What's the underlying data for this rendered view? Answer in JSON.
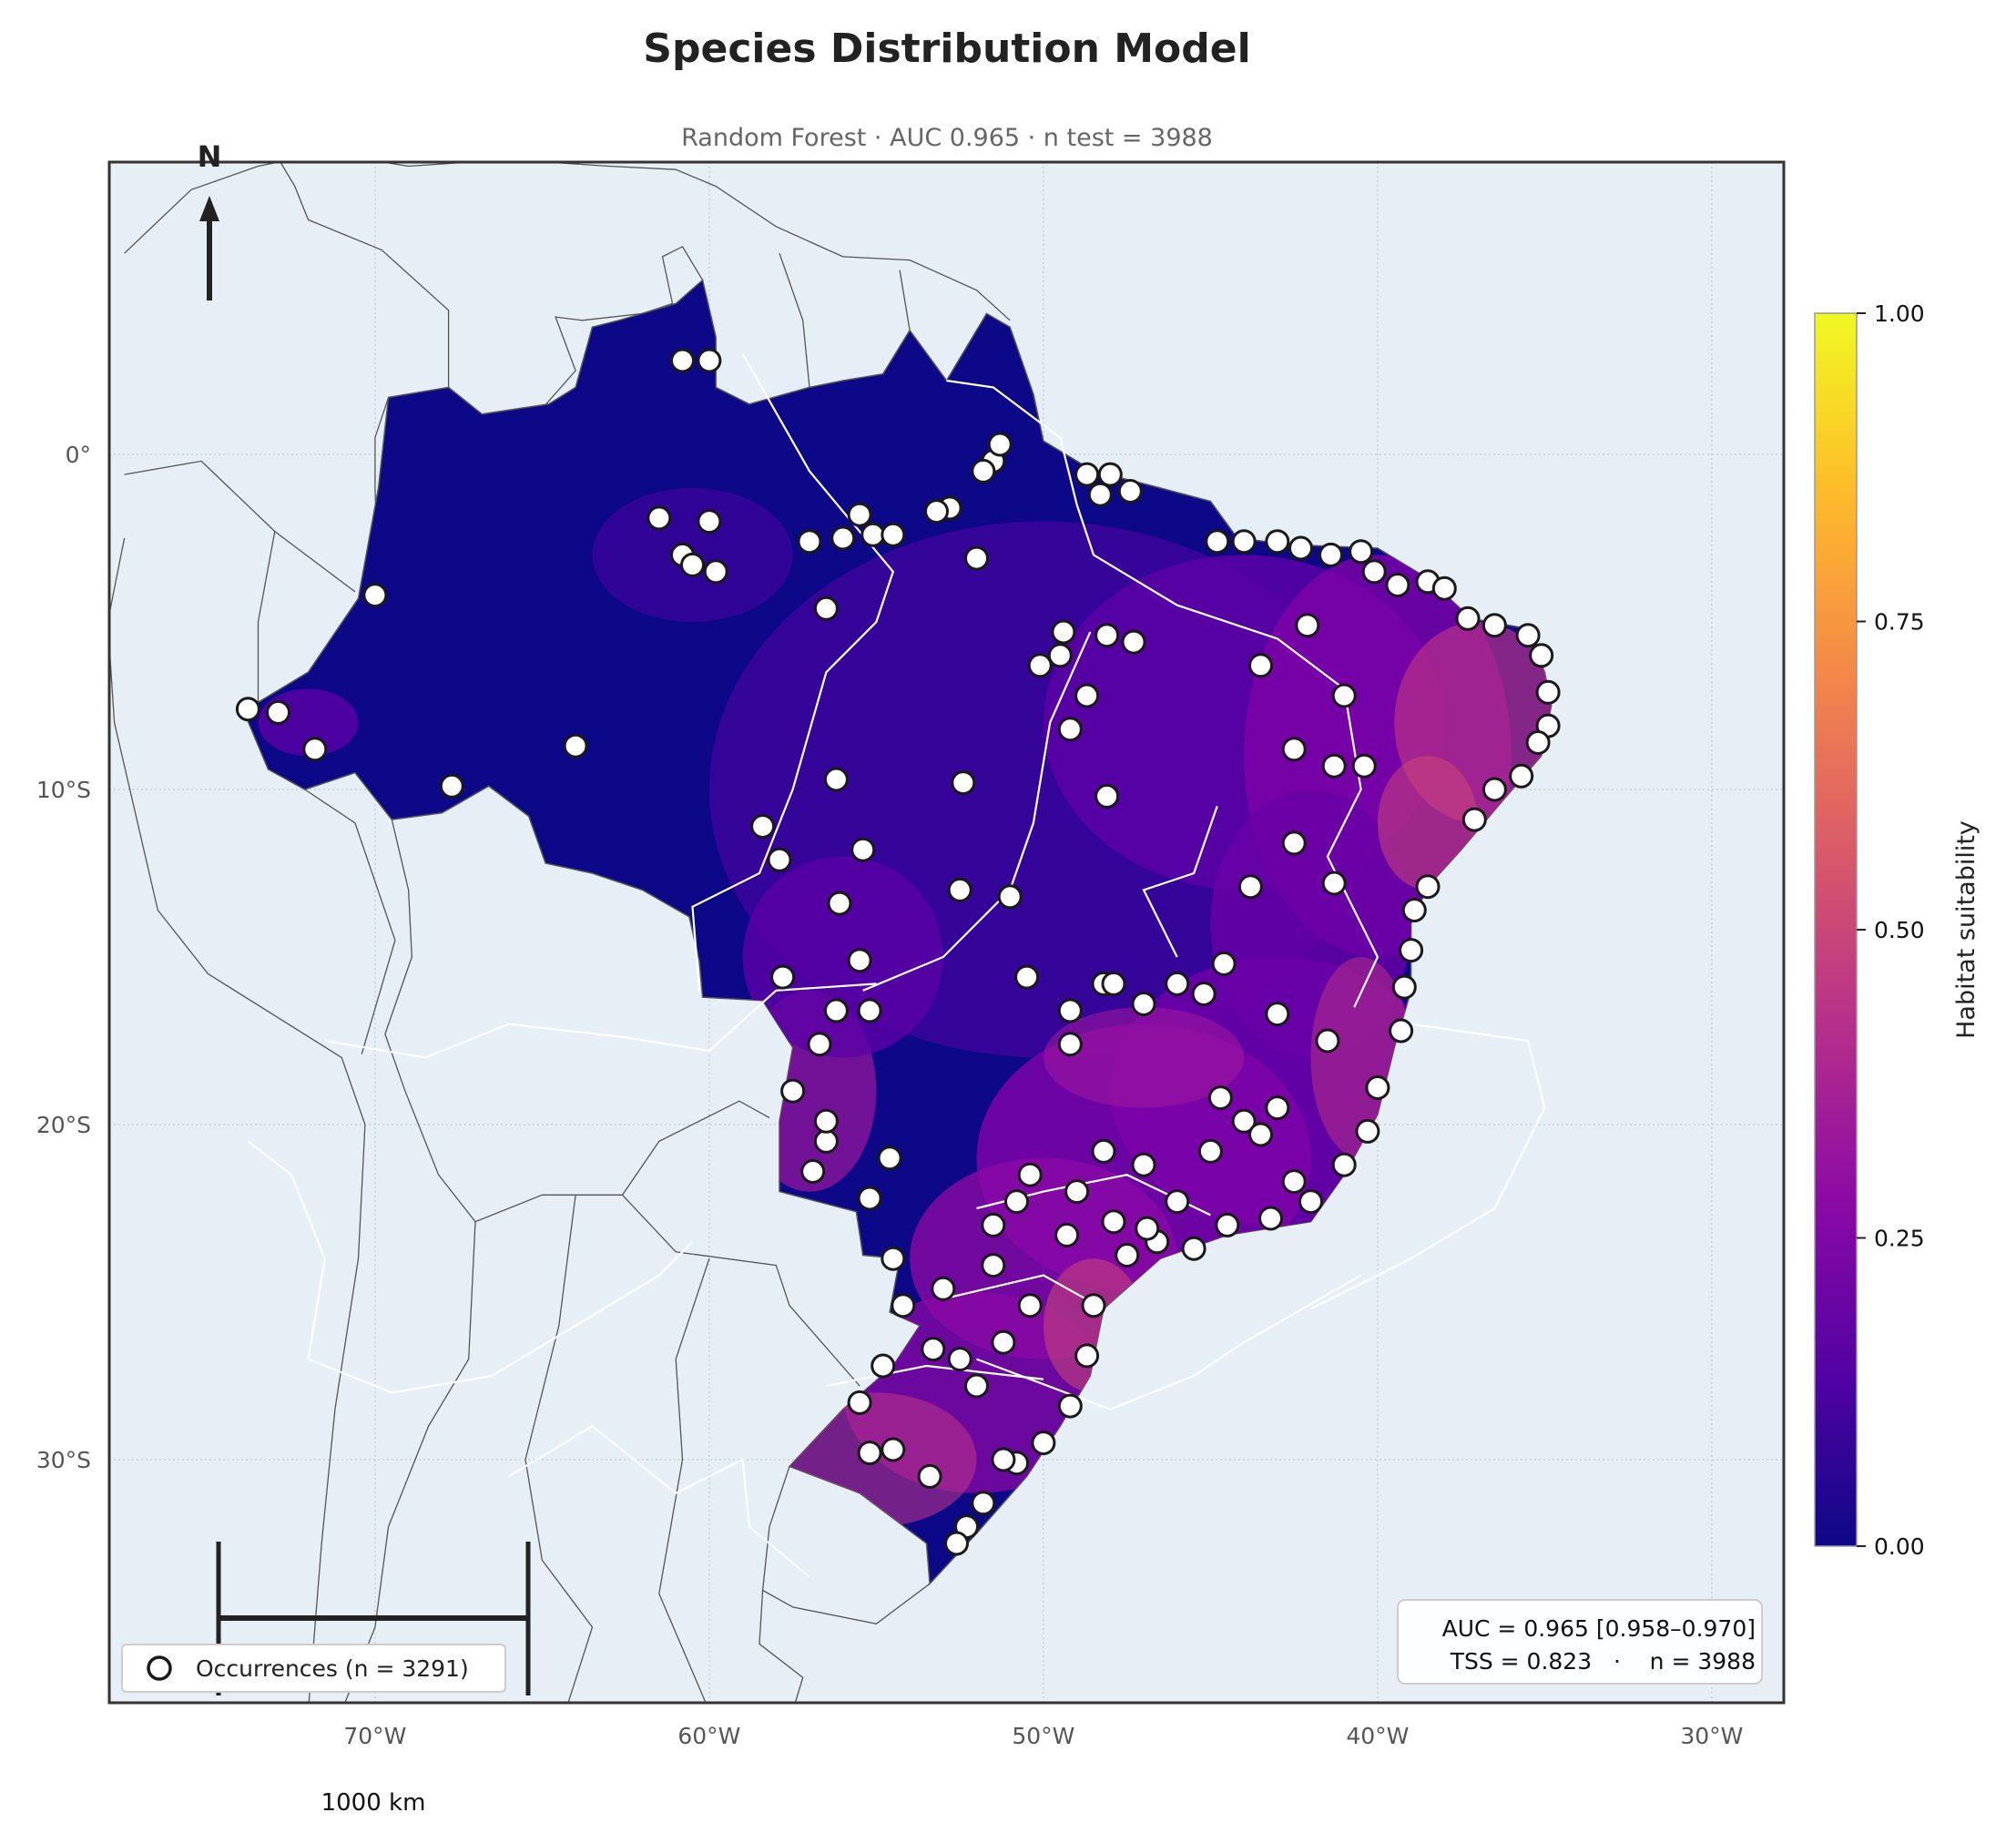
{
  "title": "Species Distribution Model",
  "subtitle": "Random Forest · AUC 0.965 · n test = 3988",
  "north_arrow": {
    "label": "N"
  },
  "axes": {
    "x_ticks": [
      "70°W",
      "60°W",
      "50°W",
      "40°W",
      "30°W"
    ],
    "y_ticks": [
      "0°",
      "10°S",
      "20°S",
      "30°S"
    ],
    "lon_range": [
      -77.5,
      -27.5
    ],
    "lat_range": [
      -37.5,
      8.7
    ],
    "grid": true
  },
  "colorbar": {
    "label": "Habitat suitability",
    "ticks": [
      "0.00",
      "0.25",
      "0.50",
      "0.75",
      "1.00"
    ],
    "colormap": "plasma",
    "colors": [
      "#0d0887",
      "#5302a3",
      "#8b0aa5",
      "#b83289",
      "#db5c68",
      "#f48849",
      "#febd2a",
      "#f0f921"
    ]
  },
  "legend": {
    "label": "Occurrences (n = 3291)",
    "location": "lower-left"
  },
  "stats_box": {
    "line1": "AUC = 0.965 [0.958–0.970]",
    "line2": "TSS = 0.823   ·    n = 3988",
    "location": "lower-right"
  },
  "scale_bar": {
    "label": "1000 km"
  },
  "colors": {
    "ocean": "#e6eef6",
    "land_fill": "#0d0887",
    "occurrence_fill": "#ffffff",
    "occurrence_edge": "#1a1a1a"
  },
  "chart_data": {
    "type": "scatter",
    "description_units": "longitude/latitude degrees",
    "occurrence_count": 3291,
    "metrics": {
      "model": "Random Forest",
      "AUC": 0.965,
      "AUC_CI": [
        0.958,
        0.97
      ],
      "TSS": 0.823,
      "n_test": 3988
    },
    "occurrences_sample": [
      [
        -73.8,
        -7.6
      ],
      [
        -72.9,
        -7.7
      ],
      [
        -71.8,
        -8.8
      ],
      [
        -67.7,
        -9.9
      ],
      [
        -64.0,
        -8.7
      ],
      [
        -70.0,
        -4.2
      ],
      [
        -60.8,
        2.8
      ],
      [
        -60.0,
        2.8
      ],
      [
        -61.5,
        -1.9
      ],
      [
        -60.8,
        -3.0
      ],
      [
        -60.0,
        -2.0
      ],
      [
        -59.8,
        -3.5
      ],
      [
        -60.5,
        -3.3
      ],
      [
        -57.0,
        -2.6
      ],
      [
        -56.0,
        -2.5
      ],
      [
        -55.1,
        -2.4
      ],
      [
        -54.5,
        -2.4
      ],
      [
        -56.5,
        -4.6
      ],
      [
        -55.5,
        -1.8
      ],
      [
        -51.5,
        -0.2
      ],
      [
        -51.3,
        0.3
      ],
      [
        -51.8,
        -0.5
      ],
      [
        -52.0,
        -3.1
      ],
      [
        -52.8,
        -1.6
      ],
      [
        -53.2,
        -1.7
      ],
      [
        -48.7,
        -0.6
      ],
      [
        -48.0,
        -0.6
      ],
      [
        -48.3,
        -1.2
      ],
      [
        -47.4,
        -1.1
      ],
      [
        -44.8,
        -2.6
      ],
      [
        -44.0,
        -2.6
      ],
      [
        -43.0,
        -2.6
      ],
      [
        -42.3,
        -2.8
      ],
      [
        -41.4,
        -3.0
      ],
      [
        -40.5,
        -2.9
      ],
      [
        -40.1,
        -3.5
      ],
      [
        -39.4,
        -3.9
      ],
      [
        -38.5,
        -3.8
      ],
      [
        -38.0,
        -4.0
      ],
      [
        -37.3,
        -4.9
      ],
      [
        -36.5,
        -5.1
      ],
      [
        -35.5,
        -5.4
      ],
      [
        -35.1,
        -6.0
      ],
      [
        -34.9,
        -7.1
      ],
      [
        -34.9,
        -8.1
      ],
      [
        -35.2,
        -8.6
      ],
      [
        -35.7,
        -9.6
      ],
      [
        -36.5,
        -10.0
      ],
      [
        -37.1,
        -10.9
      ],
      [
        -38.5,
        -12.9
      ],
      [
        -38.9,
        -13.6
      ],
      [
        -39.0,
        -14.8
      ],
      [
        -39.2,
        -15.9
      ],
      [
        -39.3,
        -17.2
      ],
      [
        -40.0,
        -18.9
      ],
      [
        -40.3,
        -20.2
      ],
      [
        -41.0,
        -21.2
      ],
      [
        -42.0,
        -22.3
      ],
      [
        -43.2,
        -22.8
      ],
      [
        -44.5,
        -23.0
      ],
      [
        -45.5,
        -23.7
      ],
      [
        -46.6,
        -23.5
      ],
      [
        -47.5,
        -23.9
      ],
      [
        -48.5,
        -25.4
      ],
      [
        -48.7,
        -26.9
      ],
      [
        -49.2,
        -28.4
      ],
      [
        -50.0,
        -29.5
      ],
      [
        -50.8,
        -30.1
      ],
      [
        -51.2,
        -30.0
      ],
      [
        -51.8,
        -31.3
      ],
      [
        -52.3,
        -32.0
      ],
      [
        -52.6,
        -32.5
      ],
      [
        -53.4,
        -30.5
      ],
      [
        -54.5,
        -29.7
      ],
      [
        -55.2,
        -29.8
      ],
      [
        -55.5,
        -28.3
      ],
      [
        -54.8,
        -27.2
      ],
      [
        -53.3,
        -26.7
      ],
      [
        -52.5,
        -27.0
      ],
      [
        -52.0,
        -27.8
      ],
      [
        -51.2,
        -26.5
      ],
      [
        -50.4,
        -25.4
      ],
      [
        -51.5,
        -24.2
      ],
      [
        -53.0,
        -24.9
      ],
      [
        -54.2,
        -25.4
      ],
      [
        -54.5,
        -24.0
      ],
      [
        -55.2,
        -22.2
      ],
      [
        -54.6,
        -21.0
      ],
      [
        -56.5,
        -20.5
      ],
      [
        -57.5,
        -19.0
      ],
      [
        -56.5,
        -19.9
      ],
      [
        -56.9,
        -21.4
      ],
      [
        -56.7,
        -17.6
      ],
      [
        -56.2,
        -16.6
      ],
      [
        -55.5,
        -15.1
      ],
      [
        -56.1,
        -13.4
      ],
      [
        -55.2,
        -16.6
      ],
      [
        -57.8,
        -15.6
      ],
      [
        -58.4,
        -11.1
      ],
      [
        -57.9,
        -12.1
      ],
      [
        -56.2,
        -9.7
      ],
      [
        -55.4,
        -11.8
      ],
      [
        -52.4,
        -9.8
      ],
      [
        -52.5,
        -13.0
      ],
      [
        -51.0,
        -13.2
      ],
      [
        -50.5,
        -15.6
      ],
      [
        -49.2,
        -16.6
      ],
      [
        -49.2,
        -17.6
      ],
      [
        -48.2,
        -15.8
      ],
      [
        -47.9,
        -15.8
      ],
      [
        -47.0,
        -16.4
      ],
      [
        -46.0,
        -15.8
      ],
      [
        -45.2,
        -16.1
      ],
      [
        -44.6,
        -15.2
      ],
      [
        -43.8,
        -12.9
      ],
      [
        -43.0,
        -16.7
      ],
      [
        -41.5,
        -17.5
      ],
      [
        -42.5,
        -11.6
      ],
      [
        -41.3,
        -12.8
      ],
      [
        -41.3,
        -9.3
      ],
      [
        -40.4,
        -9.3
      ],
      [
        -42.5,
        -8.8
      ],
      [
        -43.5,
        -6.3
      ],
      [
        -42.1,
        -5.1
      ],
      [
        -41.0,
        -7.2
      ],
      [
        -49.4,
        -5.3
      ],
      [
        -48.1,
        -5.4
      ],
      [
        -47.3,
        -5.6
      ],
      [
        -48.7,
        -7.2
      ],
      [
        -49.2,
        -8.2
      ],
      [
        -48.1,
        -10.2
      ],
      [
        -50.1,
        -6.3
      ],
      [
        -49.5,
        -6.0
      ],
      [
        -48.2,
        -20.8
      ],
      [
        -47.0,
        -21.2
      ],
      [
        -46.0,
        -22.3
      ],
      [
        -45.0,
        -20.8
      ],
      [
        -44.0,
        -19.9
      ],
      [
        -43.5,
        -20.3
      ],
      [
        -42.5,
        -21.7
      ],
      [
        -43.0,
        -19.5
      ],
      [
        -44.7,
        -19.2
      ],
      [
        -49.0,
        -22.0
      ],
      [
        -50.4,
        -21.5
      ],
      [
        -50.8,
        -22.3
      ],
      [
        -51.5,
        -23.0
      ],
      [
        -47.9,
        -22.9
      ],
      [
        -46.9,
        -23.1
      ],
      [
        -49.3,
        -23.3
      ]
    ]
  }
}
